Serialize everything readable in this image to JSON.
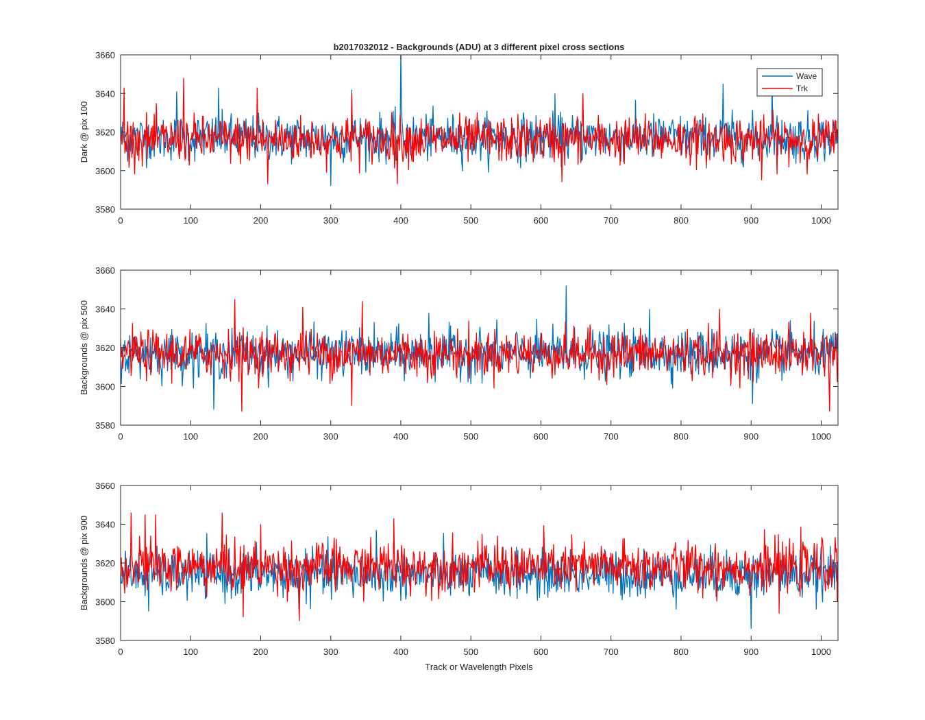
{
  "figure": {
    "title": "b2017032012 - Backgrounds (ADU) at 3 different pixel cross sections",
    "xlabel": "Track or Wavelength Pixels",
    "legend": {
      "placement": "top-right",
      "entries": [
        {
          "name": "Wave",
          "color": "#0072BD"
        },
        {
          "name": "Trk",
          "color": "#FF0000"
        }
      ]
    }
  },
  "chart_data": [
    {
      "type": "line",
      "ylabel": "Dark @ pix 100",
      "xlim": [
        0,
        1024
      ],
      "ylim": [
        3580,
        3660
      ],
      "xticks": [
        0,
        100,
        200,
        300,
        400,
        500,
        600,
        700,
        800,
        900,
        1000
      ],
      "yticks": [
        3580,
        3600,
        3620,
        3640,
        3660
      ],
      "grid": false,
      "legend": "top-right",
      "series": [
        {
          "name": "Wave",
          "color": "#0072BD",
          "mean": 3617,
          "noise": 6,
          "spikes": [
            [
              400,
              3662
            ],
            [
              140,
              3643
            ],
            [
              860,
              3645
            ],
            [
              300,
              3592
            ],
            [
              330,
              3642
            ],
            [
              620,
              3640
            ],
            [
              930,
              3644
            ],
            [
              80,
              3641
            ]
          ]
        },
        {
          "name": "Trk",
          "color": "#FF0000",
          "mean": 3616,
          "noise": 6,
          "spikes": [
            [
              90,
              3648
            ],
            [
              5,
              3643
            ],
            [
              195,
              3643
            ],
            [
              330,
              3640
            ],
            [
              630,
              3594
            ],
            [
              210,
              3593
            ],
            [
              395,
              3593
            ],
            [
              660,
              3640
            ],
            [
              915,
              3595
            ]
          ]
        }
      ]
    },
    {
      "type": "line",
      "ylabel": "Backgrounds @ pix 500",
      "xlim": [
        0,
        1024
      ],
      "ylim": [
        3580,
        3660
      ],
      "xticks": [
        0,
        100,
        200,
        300,
        400,
        500,
        600,
        700,
        800,
        900,
        1000
      ],
      "yticks": [
        3580,
        3600,
        3620,
        3640,
        3660
      ],
      "grid": false,
      "legend": "none",
      "series": [
        {
          "name": "Wave",
          "color": "#0072BD",
          "mean": 3617,
          "noise": 6,
          "spikes": [
            [
              636,
              3652
            ],
            [
              133,
              3588
            ],
            [
              902,
              3591
            ],
            [
              440,
              3638
            ],
            [
              755,
              3640
            ]
          ]
        },
        {
          "name": "Trk",
          "color": "#FF0000",
          "mean": 3617,
          "noise": 6,
          "spikes": [
            [
              163,
              3645
            ],
            [
              173,
              3587
            ],
            [
              1012,
              3587
            ],
            [
              330,
              3590
            ],
            [
              345,
              3644
            ],
            [
              260,
              3641
            ],
            [
              855,
              3640
            ],
            [
              985,
              3638
            ]
          ]
        }
      ]
    },
    {
      "type": "line",
      "ylabel": "Backgrounds @ pix 900",
      "xlim": [
        0,
        1024
      ],
      "ylim": [
        3580,
        3660
      ],
      "xticks": [
        0,
        100,
        200,
        300,
        400,
        500,
        600,
        700,
        800,
        900,
        1000
      ],
      "yticks": [
        3580,
        3600,
        3620,
        3640,
        3660
      ],
      "grid": false,
      "legend": "none",
      "series": [
        {
          "name": "Wave",
          "color": "#0072BD",
          "mean": 3614,
          "noise": 6,
          "spikes": [
            [
              900,
              3586
            ],
            [
              255,
              3591
            ],
            [
              40,
              3595
            ],
            [
              365,
              3637
            ]
          ]
        },
        {
          "name": "Trk",
          "color": "#FF0000",
          "mean": 3618,
          "noise": 6.5,
          "spikes": [
            [
              15,
              3646
            ],
            [
              145,
              3646
            ],
            [
              390,
              3643
            ],
            [
              35,
              3645
            ],
            [
              50,
              3645
            ],
            [
              175,
              3592
            ],
            [
              255,
              3590
            ],
            [
              200,
              3640
            ],
            [
              940,
              3594
            ]
          ]
        }
      ]
    }
  ]
}
